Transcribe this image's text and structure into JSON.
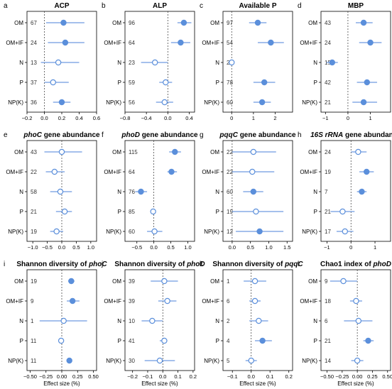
{
  "colors": {
    "point": "#5B8FDB",
    "ci": "#6F9BE0",
    "zero_line": "#333333"
  },
  "chart_data": [
    {
      "letter": "a",
      "title_parts": [
        {
          "text": "ACP",
          "italic": false
        }
      ],
      "type": "scatter",
      "xlim": [
        -0.2,
        0.6
      ],
      "ticks": [
        -0.2,
        0,
        0.2,
        0.4,
        0.6
      ],
      "tick_labels": [
        "−0.2",
        "0.0",
        "0.2",
        "0.4",
        "0.6"
      ],
      "xlabel": "",
      "rows": [
        {
          "label": "OM",
          "n": "67",
          "mean": 0.22,
          "lo": 0.02,
          "hi": 0.46,
          "filled": true
        },
        {
          "label": "OM+IF",
          "n": "24",
          "mean": 0.24,
          "lo": 0.04,
          "hi": 0.46,
          "filled": true
        },
        {
          "label": "N",
          "n": "13",
          "mean": 0.16,
          "lo": -0.04,
          "hi": 0.4,
          "filled": false
        },
        {
          "label": "P",
          "n": "37",
          "mean": 0.1,
          "lo": 0.0,
          "hi": 0.28,
          "filled": false
        },
        {
          "label": "NP(K)",
          "n": "36",
          "mean": 0.2,
          "lo": 0.1,
          "hi": 0.3,
          "filled": true
        }
      ]
    },
    {
      "letter": "b",
      "title_parts": [
        {
          "text": "ALP",
          "italic": false
        }
      ],
      "type": "scatter",
      "xlim": [
        -0.8,
        0.5
      ],
      "ticks": [
        -0.8,
        -0.4,
        0,
        0.4
      ],
      "tick_labels": [
        "−0.8",
        "−0.4",
        "0.0",
        "0.4"
      ],
      "xlabel": "",
      "rows": [
        {
          "label": "OM",
          "n": "96",
          "mean": 0.3,
          "lo": 0.18,
          "hi": 0.44,
          "filled": true
        },
        {
          "label": "OM+IF",
          "n": "64",
          "mean": 0.24,
          "lo": 0.06,
          "hi": 0.42,
          "filled": true
        },
        {
          "label": "N",
          "n": "23",
          "mean": -0.24,
          "lo": -0.5,
          "hi": 0.0,
          "filled": false
        },
        {
          "label": "P",
          "n": "59",
          "mean": -0.04,
          "lo": -0.16,
          "hi": 0.08,
          "filled": false
        },
        {
          "label": "NP(K)",
          "n": "56",
          "mean": -0.06,
          "lo": -0.22,
          "hi": 0.1,
          "filled": false
        }
      ]
    },
    {
      "letter": "c",
      "title_parts": [
        {
          "text": "Available P",
          "italic": false
        }
      ],
      "type": "scatter",
      "xlim": [
        -0.4,
        2.8
      ],
      "ticks": [
        0,
        1,
        2
      ],
      "tick_labels": [
        "0",
        "1",
        "2"
      ],
      "xlabel": "",
      "rows": [
        {
          "label": "OM",
          "n": "97",
          "mean": 1.2,
          "lo": 0.8,
          "hi": 1.6,
          "filled": true
        },
        {
          "label": "OM+IF",
          "n": "54",
          "mean": 1.8,
          "lo": 1.2,
          "hi": 2.4,
          "filled": true
        },
        {
          "label": "N",
          "n": "27",
          "mean": 0.0,
          "lo": -0.12,
          "hi": 0.12,
          "filled": false
        },
        {
          "label": "P",
          "n": "78",
          "mean": 1.5,
          "lo": 1.0,
          "hi": 2.0,
          "filled": true
        },
        {
          "label": "NP(K)",
          "n": "60",
          "mean": 1.4,
          "lo": 1.0,
          "hi": 1.8,
          "filled": true
        }
      ]
    },
    {
      "letter": "d",
      "title_parts": [
        {
          "text": "MBP",
          "italic": false
        }
      ],
      "type": "scatter",
      "xlim": [
        -1.2,
        1.9
      ],
      "ticks": [
        -1,
        0,
        1
      ],
      "tick_labels": [
        "−1",
        "0",
        "1"
      ],
      "xlabel": "",
      "rows": [
        {
          "label": "OM",
          "n": "43",
          "mean": 0.7,
          "lo": 0.35,
          "hi": 1.1,
          "filled": true
        },
        {
          "label": "OM+IF",
          "n": "24",
          "mean": 1.0,
          "lo": 0.5,
          "hi": 1.5,
          "filled": true
        },
        {
          "label": "N",
          "n": "15",
          "mean": -0.7,
          "lo": -0.95,
          "hi": -0.45,
          "filled": true
        },
        {
          "label": "P",
          "n": "42",
          "mean": 0.85,
          "lo": 0.4,
          "hi": 1.3,
          "filled": true
        },
        {
          "label": "NP(K)",
          "n": "21",
          "mean": 0.7,
          "lo": 0.2,
          "hi": 1.3,
          "filled": true
        }
      ]
    },
    {
      "letter": "e",
      "title_parts": [
        {
          "text": "phoC",
          "italic": true
        },
        {
          "text": " gene abundance",
          "italic": false
        }
      ],
      "type": "scatter",
      "xlim": [
        -1.2,
        1.2
      ],
      "ticks": [
        -1,
        -0.5,
        0,
        0.5,
        1
      ],
      "tick_labels": [
        "−1.0",
        "−0.5",
        "0.0",
        "0.5",
        "1.0"
      ],
      "xlabel": "",
      "rows": [
        {
          "label": "OM",
          "n": "43",
          "mean": 0.0,
          "lo": -0.6,
          "hi": 0.7,
          "filled": false
        },
        {
          "label": "OM+IF",
          "n": "22",
          "mean": -0.25,
          "lo": -0.55,
          "hi": 0.1,
          "filled": false
        },
        {
          "label": "N",
          "n": "58",
          "mean": -0.05,
          "lo": -0.4,
          "hi": 0.35,
          "filled": false
        },
        {
          "label": "P",
          "n": "21",
          "mean": 0.1,
          "lo": -0.2,
          "hi": 0.35,
          "filled": false
        },
        {
          "label": "NP(K)",
          "n": "19",
          "mean": -0.18,
          "lo": -0.4,
          "hi": 0.05,
          "filled": false
        }
      ]
    },
    {
      "letter": "f",
      "title_parts": [
        {
          "text": "phoD",
          "italic": true
        },
        {
          "text": " gene abundance",
          "italic": false
        }
      ],
      "type": "scatter",
      "xlim": [
        -0.85,
        1.2
      ],
      "ticks": [
        -0.5,
        0,
        0.5,
        1
      ],
      "tick_labels": [
        "−0.5",
        "0.0",
        "0.5",
        "1.0"
      ],
      "xlabel": "",
      "rows": [
        {
          "label": "OM",
          "n": "115",
          "mean": 0.62,
          "lo": 0.45,
          "hi": 0.8,
          "filled": true
        },
        {
          "label": "OM+IF",
          "n": "64",
          "mean": 0.52,
          "lo": 0.4,
          "hi": 0.68,
          "filled": true
        },
        {
          "label": "N",
          "n": "76",
          "mean": -0.38,
          "lo": -0.55,
          "hi": -0.2,
          "filled": true
        },
        {
          "label": "P",
          "n": "85",
          "mean": -0.02,
          "lo": -0.1,
          "hi": 0.05,
          "filled": false
        },
        {
          "label": "NP(K)",
          "n": "60",
          "mean": 0.02,
          "lo": -0.2,
          "hi": 0.25,
          "filled": false
        }
      ]
    },
    {
      "letter": "g",
      "title_parts": [
        {
          "text": "pqqC",
          "italic": true
        },
        {
          "text": " gene abundance",
          "italic": false
        }
      ],
      "type": "scatter",
      "xlim": [
        -0.25,
        1.65
      ],
      "ticks": [
        0,
        0.5,
        1,
        1.5
      ],
      "tick_labels": [
        "0.0",
        "0.5",
        "1.0",
        "1.5"
      ],
      "xlabel": "",
      "rows": [
        {
          "label": "OM",
          "n": "22",
          "mean": 0.58,
          "lo": 0.0,
          "hi": 1.2,
          "filled": false
        },
        {
          "label": "OM+IF",
          "n": "22",
          "mean": 0.55,
          "lo": 0.0,
          "hi": 1.15,
          "filled": false
        },
        {
          "label": "N",
          "n": "60",
          "mean": 0.58,
          "lo": 0.3,
          "hi": 0.85,
          "filled": true
        },
        {
          "label": "P",
          "n": "19",
          "mean": 0.65,
          "lo": 0.0,
          "hi": 1.4,
          "filled": false
        },
        {
          "label": "NP(K)",
          "n": "12",
          "mean": 0.75,
          "lo": 0.1,
          "hi": 1.4,
          "filled": true
        }
      ]
    },
    {
      "letter": "h",
      "title_parts": [
        {
          "text": "16S rRNA",
          "italic": true
        },
        {
          "text": " gene abundance",
          "italic": false
        }
      ],
      "type": "scatter",
      "xlim": [
        -1.25,
        1.65
      ],
      "ticks": [
        -1,
        0,
        1
      ],
      "tick_labels": [
        "−1",
        "0",
        "1"
      ],
      "xlabel": "",
      "rows": [
        {
          "label": "OM",
          "n": "24",
          "mean": 0.3,
          "lo": 0.0,
          "hi": 0.65,
          "filled": false
        },
        {
          "label": "OM+IF",
          "n": "19",
          "mean": 0.65,
          "lo": 0.35,
          "hi": 0.95,
          "filled": true
        },
        {
          "label": "N",
          "n": "7",
          "mean": 0.45,
          "lo": 0.25,
          "hi": 0.65,
          "filled": true
        },
        {
          "label": "P",
          "n": "21",
          "mean": -0.35,
          "lo": -0.85,
          "hi": 0.15,
          "filled": false
        },
        {
          "label": "NP(K)",
          "n": "17",
          "mean": -0.25,
          "lo": -0.6,
          "hi": 0.1,
          "filled": false
        }
      ]
    },
    {
      "letter": "i",
      "title_parts": [
        {
          "text": "Shannon diversity of ",
          "italic": false
        },
        {
          "text": "phoC",
          "italic": true
        }
      ],
      "type": "scatter",
      "xlim": [
        -0.55,
        0.55
      ],
      "ticks": [
        -0.5,
        -0.25,
        0,
        0.25,
        0.5
      ],
      "tick_labels": [
        "−0.50",
        "−0.25",
        "0.00",
        "0.25",
        "0.50"
      ],
      "xlabel": "Effect size (%)",
      "rows": [
        {
          "label": "OM",
          "n": "19",
          "mean": 0.15,
          "lo": 0.1,
          "hi": 0.2,
          "filled": true
        },
        {
          "label": "OM+IF",
          "n": "9",
          "mean": 0.17,
          "lo": 0.08,
          "hi": 0.28,
          "filled": true
        },
        {
          "label": "N",
          "n": "1",
          "mean": 0.03,
          "lo": -0.35,
          "hi": 0.4,
          "filled": false
        },
        {
          "label": "P",
          "n": "11",
          "mean": -0.01,
          "lo": -0.03,
          "hi": 0.01,
          "filled": false
        },
        {
          "label": "NP(K)",
          "n": "11",
          "mean": 0.12,
          "lo": 0.08,
          "hi": 0.16,
          "filled": true
        }
      ]
    },
    {
      "letter": "j",
      "title_parts": [
        {
          "text": "Shannon diversity of ",
          "italic": false
        },
        {
          "text": "phoD",
          "italic": true
        }
      ],
      "type": "scatter",
      "xlim": [
        -0.25,
        0.21
      ],
      "ticks": [
        -0.2,
        -0.1,
        0,
        0.1,
        0.2
      ],
      "tick_labels": [
        "−0.2",
        "−0.1",
        "0.0",
        "0.1",
        "0.2"
      ],
      "xlabel": "Effect size (%)",
      "rows": [
        {
          "label": "OM",
          "n": "39",
          "mean": 0.01,
          "lo": -0.08,
          "hi": 0.1,
          "filled": false
        },
        {
          "label": "OM+IF",
          "n": "39",
          "mean": 0.03,
          "lo": -0.03,
          "hi": 0.09,
          "filled": false
        },
        {
          "label": "N",
          "n": "10",
          "mean": -0.07,
          "lo": -0.14,
          "hi": 0.0,
          "filled": false
        },
        {
          "label": "P",
          "n": "41",
          "mean": 0.01,
          "lo": -0.02,
          "hi": 0.03,
          "filled": false
        },
        {
          "label": "NP(K)",
          "n": "30",
          "mean": -0.02,
          "lo": -0.12,
          "hi": 0.08,
          "filled": false
        }
      ]
    },
    {
      "letter": "k",
      "title_parts": [
        {
          "text": "Shannon diversity of ",
          "italic": false
        },
        {
          "text": "pqqC",
          "italic": true
        }
      ],
      "type": "scatter",
      "xlim": [
        -0.15,
        0.22
      ],
      "ticks": [
        -0.1,
        0,
        0.1,
        0.2
      ],
      "tick_labels": [
        "−0.1",
        "0.0",
        "0.1",
        "0.2"
      ],
      "xlabel": "Effect size (%)",
      "rows": [
        {
          "label": "OM",
          "n": "1",
          "mean": 0.02,
          "lo": -0.04,
          "hi": 0.08,
          "filled": false
        },
        {
          "label": "OM+IF",
          "n": "6",
          "mean": 0.02,
          "lo": -0.01,
          "hi": 0.05,
          "filled": false
        },
        {
          "label": "N",
          "n": "2",
          "mean": 0.04,
          "lo": -0.01,
          "hi": 0.09,
          "filled": false
        },
        {
          "label": "P",
          "n": "4",
          "mean": 0.06,
          "lo": 0.02,
          "hi": 0.11,
          "filled": true
        },
        {
          "label": "NP(K)",
          "n": "5",
          "mean": 0.0,
          "lo": -0.03,
          "hi": 0.03,
          "filled": false
        }
      ]
    },
    {
      "letter": "l",
      "title_parts": [
        {
          "text": "Chao1 index of ",
          "italic": false
        },
        {
          "text": "phoD",
          "italic": true
        }
      ],
      "type": "scatter",
      "xlim": [
        -0.6,
        0.55
      ],
      "ticks": [
        -0.5,
        -0.25,
        0,
        0.25,
        0.5
      ],
      "tick_labels": [
        "−0.50",
        "−0.25",
        "0.00",
        "0.25",
        "0.50"
      ],
      "xlabel": "Effect size (%)",
      "rows": [
        {
          "label": "OM",
          "n": "9",
          "mean": -0.23,
          "lo": -0.45,
          "hi": 0.0,
          "filled": false
        },
        {
          "label": "OM+IF",
          "n": "18",
          "mean": -0.02,
          "lo": -0.12,
          "hi": 0.08,
          "filled": false
        },
        {
          "label": "N",
          "n": "6",
          "mean": 0.02,
          "lo": -0.22,
          "hi": 0.25,
          "filled": false
        },
        {
          "label": "P",
          "n": "21",
          "mean": 0.18,
          "lo": 0.1,
          "hi": 0.27,
          "filled": true
        },
        {
          "label": "NP(K)",
          "n": "14",
          "mean": 0.0,
          "lo": -0.1,
          "hi": 0.1,
          "filled": false
        }
      ]
    }
  ]
}
